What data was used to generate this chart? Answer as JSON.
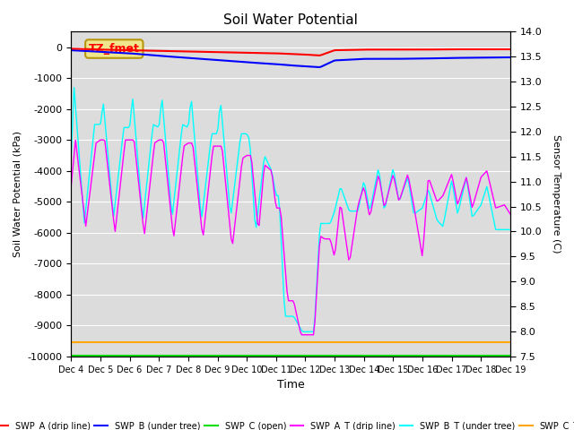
{
  "title": "Soil Water Potential",
  "xlabel": "Time",
  "ylabel_left": "Soil Water Potential (kPa)",
  "ylabel_right": "Sensor Temperature (C)",
  "ylim_left": [
    -10000,
    500
  ],
  "ylim_right": [
    7.5,
    14.0
  ],
  "yticks_left": [
    0,
    -1000,
    -2000,
    -3000,
    -4000,
    -5000,
    -6000,
    -7000,
    -8000,
    -9000,
    -10000
  ],
  "yticks_right": [
    7.5,
    8.0,
    8.5,
    9.0,
    9.5,
    10.0,
    10.5,
    11.0,
    11.5,
    12.0,
    12.5,
    13.0,
    13.5,
    14.0
  ],
  "xtick_labels": [
    "Dec 4",
    "Dec 5",
    "Dec 6",
    "Dec 7",
    "Dec 8",
    "Dec 9",
    "Dec 10",
    "Dec 11",
    "Dec 12",
    "Dec 13",
    "Dec 14",
    "Dec 15",
    "Dec 16",
    "Dec 17",
    "Dec 18",
    "Dec 19"
  ],
  "bg_color": "#dcdcdc",
  "legend_box_color": "#f0e68c",
  "legend_box_text": "TZ_fmet",
  "legend_box_edge": "#b8960c",
  "grid_color": "#ffffff",
  "series": {
    "SWP_A": {
      "color": "red",
      "label": "SWP_A (drip line)"
    },
    "SWP_B": {
      "color": "blue",
      "label": "SWP_B (under tree)"
    },
    "SWP_C": {
      "color": "#00dd00",
      "label": "SWP_C (open)"
    },
    "SWP_A_T": {
      "color": "magenta",
      "label": "SWP_A_T (drip line)"
    },
    "SWP_B_T": {
      "color": "cyan",
      "label": "SWP_B_T (under tree)"
    },
    "SWP_C_T": {
      "color": "orange",
      "label": "SWP_C_T"
    }
  },
  "swp_a": {
    "x": [
      0,
      1,
      2,
      3,
      4,
      5,
      6,
      7,
      7.5,
      8.0,
      8.3,
      8.5,
      9,
      10,
      11,
      12,
      13,
      14,
      15
    ],
    "y": [
      -50,
      -80,
      -100,
      -120,
      -140,
      -160,
      -180,
      -200,
      -220,
      -240,
      -260,
      -270,
      -100,
      -80,
      -80,
      -80,
      -70,
      -70,
      -70
    ]
  },
  "swp_b": {
    "x": [
      0,
      1,
      2,
      3,
      4,
      5,
      6,
      7,
      7.5,
      8.0,
      8.3,
      8.5,
      9,
      10,
      11,
      12,
      13,
      14,
      15
    ],
    "y": [
      -100,
      -150,
      -200,
      -280,
      -350,
      -420,
      -490,
      -550,
      -590,
      -620,
      -640,
      -650,
      -430,
      -380,
      -380,
      -370,
      -350,
      -340,
      -330
    ]
  },
  "swp_c": -9980,
  "swp_c_t": -9550,
  "swp_at_x": [
    0,
    0.15,
    0.5,
    0.85,
    1.0,
    1.15,
    1.5,
    1.85,
    2.0,
    2.15,
    2.5,
    2.85,
    3.0,
    3.15,
    3.5,
    3.85,
    4.0,
    4.15,
    4.5,
    4.85,
    5.0,
    5.15,
    5.5,
    5.85,
    6.0,
    6.15,
    6.4,
    6.6,
    6.85,
    7.0,
    7.15,
    7.4,
    7.6,
    7.85,
    8.0,
    8.15,
    8.3,
    8.5,
    8.65,
    8.85,
    9.0,
    9.2,
    9.5,
    9.8,
    10.0,
    10.2,
    10.5,
    10.7,
    11.0,
    11.2,
    11.5,
    11.7,
    12.0,
    12.2,
    12.5,
    12.7,
    13.0,
    13.2,
    13.5,
    13.7,
    14.0,
    14.2,
    14.5,
    14.8,
    15.0
  ],
  "swp_at_y": [
    -4500,
    -3000,
    -5800,
    -3100,
    -3000,
    -3000,
    -6000,
    -3000,
    -3000,
    -3000,
    -6100,
    -3100,
    -3000,
    -3000,
    -6200,
    -3200,
    -3100,
    -3100,
    -6200,
    -3200,
    -3200,
    -3200,
    -6500,
    -3600,
    -3500,
    -3500,
    -6000,
    -3800,
    -4000,
    -5200,
    -5200,
    -8200,
    -8200,
    -9300,
    -9300,
    -9300,
    -9300,
    -6100,
    -6200,
    -6200,
    -6800,
    -5000,
    -7000,
    -5100,
    -4500,
    -5500,
    -4100,
    -5200,
    -4100,
    -5000,
    -4100,
    -5100,
    -6800,
    -4200,
    -5000,
    -4800,
    -4100,
    -5100,
    -4200,
    -5200,
    -4200,
    -4000,
    -5200,
    -5100,
    -5400
  ],
  "swp_bt_x": [
    0,
    0.1,
    0.45,
    0.8,
    1.0,
    1.1,
    1.45,
    1.8,
    2.0,
    2.1,
    2.45,
    2.8,
    3.0,
    3.1,
    3.45,
    3.8,
    4.0,
    4.1,
    4.45,
    4.8,
    5.0,
    5.1,
    5.45,
    5.8,
    6.0,
    6.1,
    6.3,
    6.6,
    6.85,
    7.0,
    7.1,
    7.3,
    7.6,
    7.9,
    8.0,
    8.15,
    8.3,
    8.5,
    8.65,
    8.85,
    9.0,
    9.2,
    9.5,
    9.8,
    10.0,
    10.2,
    10.5,
    10.7,
    11.0,
    11.2,
    11.5,
    11.7,
    12.0,
    12.2,
    12.5,
    12.7,
    13.0,
    13.2,
    13.5,
    13.7,
    14.0,
    14.2,
    14.5,
    14.8,
    15.0
  ],
  "swp_bt_y": [
    -3600,
    -1300,
    -5700,
    -2500,
    -2500,
    -1800,
    -5500,
    -2600,
    -2600,
    -1600,
    -5600,
    -2500,
    -2600,
    -1600,
    -5500,
    -2500,
    -2600,
    -1600,
    -5600,
    -2800,
    -2800,
    -1700,
    -5500,
    -2800,
    -2800,
    -3000,
    -6000,
    -3500,
    -4000,
    -4800,
    -4800,
    -8700,
    -8700,
    -9200,
    -9200,
    -9200,
    -9200,
    -5700,
    -5700,
    -5700,
    -5300,
    -4500,
    -5300,
    -5300,
    -4300,
    -5300,
    -3900,
    -5300,
    -3900,
    -5000,
    -4200,
    -5400,
    -5200,
    -4600,
    -5600,
    -5800,
    -4300,
    -5400,
    -4200,
    -5500,
    -5100,
    -4500,
    -5900,
    -5900,
    -5900
  ]
}
